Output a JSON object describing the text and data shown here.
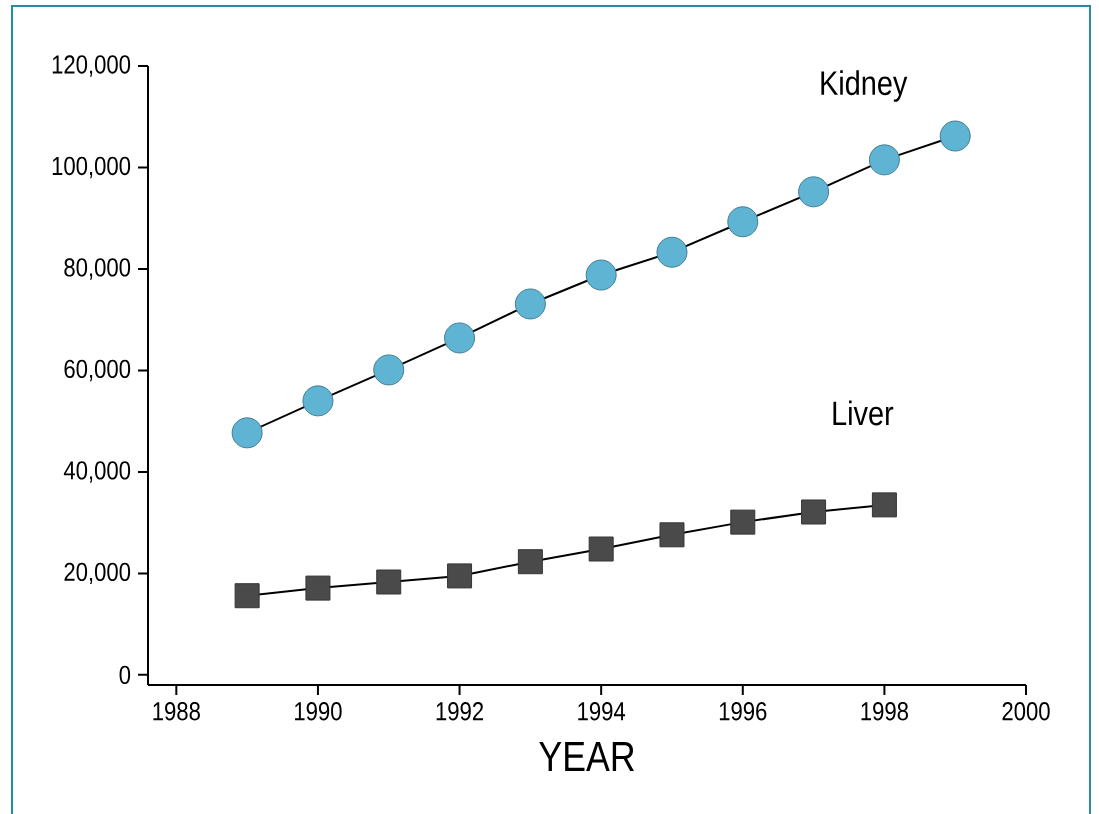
{
  "chart_data": {
    "type": "line",
    "xlabel": "YEAR",
    "x": [
      1989,
      1990,
      1991,
      1992,
      1993,
      1994,
      1995,
      1996,
      1997,
      1998,
      1999
    ],
    "series": [
      {
        "name": "Kidney",
        "color": "#5fb3d3",
        "marker": "circle",
        "values": [
          47700,
          54000,
          60100,
          66400,
          73100,
          78800,
          83300,
          89300,
          95200,
          101500,
          106200
        ]
      },
      {
        "name": "Liver",
        "color": "#4a4a4a",
        "marker": "square",
        "values": [
          15600,
          17100,
          18300,
          19500,
          22300,
          24800,
          27600,
          30100,
          32100,
          33500,
          null
        ]
      }
    ],
    "xlim": [
      1987.6,
      2000
    ],
    "ylim": [
      -2000,
      120000
    ],
    "xticks": [
      1988,
      1990,
      1992,
      1994,
      1996,
      1998,
      2000
    ],
    "yticks": [
      {
        "value": 0,
        "label": "0"
      },
      {
        "value": 20000,
        "label": "20,000"
      },
      {
        "value": 40000,
        "label": "40,000"
      },
      {
        "value": 60000,
        "label": "60,000"
      },
      {
        "value": 80000,
        "label": "80,000"
      },
      {
        "value": 100000,
        "label": "100,000"
      },
      {
        "value": 120000,
        "label": "120,000"
      }
    ],
    "grid": false,
    "line_style": "solid"
  }
}
